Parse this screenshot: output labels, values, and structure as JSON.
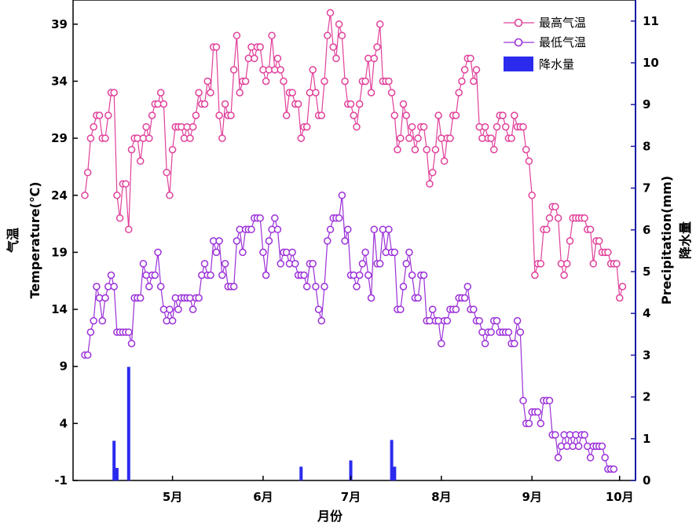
{
  "chart_data": {
    "type": "line",
    "x_axis": {
      "label": "月份",
      "ticks": [
        "5月",
        "6月",
        "7月",
        "8月",
        "9月",
        "10月"
      ],
      "tick_days": [
        31,
        62,
        92,
        123,
        154,
        184
      ]
    },
    "y_left": {
      "label_cn": "气温",
      "label_en": "Temperature(℃)",
      "ticks": [
        -1,
        4,
        9,
        14,
        19,
        24,
        29,
        34,
        39
      ],
      "ylim": [
        -1,
        41
      ]
    },
    "y_right": {
      "label_en": "Precipitation(mm)",
      "label_cn": "降水量",
      "ticks": [
        0,
        1,
        2,
        3,
        4,
        5,
        6,
        7,
        8,
        9,
        10,
        11
      ],
      "ylim": [
        0,
        11.3
      ]
    },
    "colors": {
      "max": "#e0409a",
      "min": "#9b30d8",
      "precip": "#2b2bee",
      "axis_right": "#1a1aa8"
    },
    "series": [
      {
        "name": "最高气温",
        "values": [
          24,
          26,
          29,
          30,
          31,
          31,
          29,
          29,
          31,
          33,
          33,
          24,
          22,
          25,
          25,
          21,
          28,
          29,
          29,
          27,
          29,
          30,
          29,
          31,
          32,
          32,
          33,
          32,
          26,
          24,
          28,
          30,
          30,
          30,
          29,
          30,
          29,
          30,
          31,
          33,
          32,
          32,
          34,
          33,
          37,
          37,
          31,
          29,
          32,
          31,
          31,
          35,
          38,
          33,
          34,
          34,
          36,
          37,
          36,
          37,
          37,
          35,
          34,
          35,
          38,
          35,
          36,
          35,
          34,
          31,
          33,
          33,
          32,
          32,
          29,
          30,
          30,
          33,
          35,
          33,
          31,
          31,
          34,
          38,
          40,
          37,
          36,
          39,
          38,
          34,
          32,
          32,
          31,
          30,
          32,
          34,
          34,
          36,
          33,
          36,
          37,
          39,
          34,
          34,
          34,
          33,
          31,
          28,
          29,
          32,
          31,
          29,
          30,
          28,
          29,
          30,
          30,
          28,
          25,
          26,
          28,
          31,
          29,
          27,
          29,
          29,
          31,
          31,
          33,
          34,
          35,
          36,
          36,
          34,
          35,
          30,
          29,
          30,
          29,
          29,
          28,
          30,
          31,
          31,
          30,
          29,
          29,
          31,
          30,
          30,
          30,
          28,
          27,
          24,
          17,
          18,
          18,
          21,
          21,
          22,
          23,
          23,
          22,
          18,
          17,
          18,
          20,
          22,
          22,
          22,
          22,
          22,
          21,
          21,
          18,
          20,
          20,
          19,
          19,
          19,
          18,
          18,
          18,
          15,
          16
        ],
        "x_start_day": 1
      },
      {
        "name": "最低气温",
        "values": [
          10,
          10,
          12,
          13,
          16,
          15,
          13,
          15,
          16,
          17,
          16,
          12,
          12,
          12,
          12,
          12,
          11,
          15,
          15,
          15,
          18,
          17,
          16,
          17,
          17,
          19,
          16,
          14,
          13,
          14,
          13,
          15,
          14,
          15,
          15,
          15,
          15,
          14,
          15,
          15,
          17,
          18,
          17,
          17,
          20,
          19,
          20,
          17,
          18,
          16,
          16,
          16,
          20,
          21,
          19,
          21,
          21,
          21,
          22,
          22,
          22,
          19,
          17,
          20,
          21,
          22,
          21,
          18,
          19,
          19,
          18,
          19,
          18,
          17,
          17,
          17,
          16,
          18,
          18,
          16,
          14,
          13,
          16,
          20,
          21,
          22,
          22,
          22,
          24,
          20,
          21,
          17,
          17,
          16,
          17,
          18,
          19,
          17,
          15,
          21,
          18,
          18,
          21,
          19,
          21,
          19,
          19,
          14,
          14,
          16,
          18,
          19,
          17,
          15,
          15,
          17,
          17,
          13,
          13,
          14,
          13,
          13,
          11,
          13,
          13,
          14,
          14,
          14,
          15,
          15,
          15,
          16,
          14,
          14,
          13,
          13,
          12,
          11,
          12,
          12,
          13,
          13,
          12,
          12,
          12,
          12,
          11,
          11,
          13,
          12,
          6,
          4,
          4,
          5,
          5,
          5,
          4,
          6,
          6,
          6,
          3,
          3,
          1,
          2,
          3,
          2,
          3,
          2,
          3,
          2,
          3,
          3,
          2,
          1,
          2,
          2,
          2,
          2,
          1,
          0,
          0,
          0
        ],
        "x_start_day": 1
      },
      {
        "name": "降水量",
        "type": "bar",
        "bars": [
          {
            "day": 11,
            "value": 0.95
          },
          {
            "day": 12,
            "value": 0.3
          },
          {
            "day": 16,
            "value": 2.72
          },
          {
            "day": 75,
            "value": 0.33
          },
          {
            "day": 92,
            "value": 0.48
          },
          {
            "day": 106,
            "value": 0.97
          },
          {
            "day": 107,
            "value": 0.33
          }
        ]
      }
    ],
    "legend": {
      "position": "top-right",
      "entries": [
        "最高气温",
        "最低气温",
        "降水量"
      ]
    }
  }
}
